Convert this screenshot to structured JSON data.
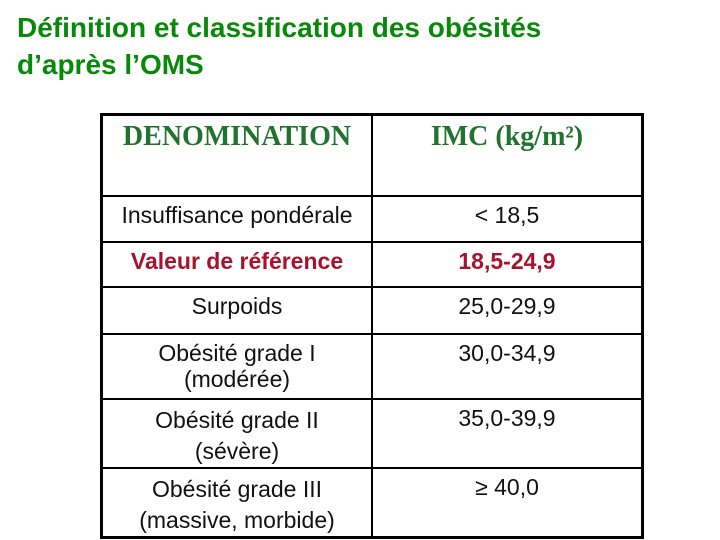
{
  "slide": {
    "title_line1": "Définition et classification des obésités",
    "title_line2": "d’après l’OMS",
    "title_color": "#098909"
  },
  "table": {
    "header_color": "#21722F",
    "emphasis_color": "#A8122A",
    "border_color": "#000000",
    "headers": [
      {
        "label": "DENOMINATION"
      },
      {
        "label": "IMC (kg/m²)"
      }
    ],
    "rows": [
      {
        "denomination_line1": "Insuffisance pondérale",
        "denomination_line2": "",
        "imc": "< 18,5",
        "emphasis": false
      },
      {
        "denomination_line1": "Valeur de référence",
        "denomination_line2": "",
        "imc": "18,5-24,9",
        "emphasis": true
      },
      {
        "denomination_line1": "Surpoids",
        "denomination_line2": "",
        "imc": "25,0-29,9",
        "emphasis": false
      },
      {
        "denomination_line1": "Obésité grade I",
        "denomination_line2": "(modérée)",
        "imc": "30,0-34,9",
        "emphasis": false
      },
      {
        "denomination_line1": "Obésité grade II",
        "denomination_line2": "(sévère)",
        "imc": "35,0-39,9",
        "emphasis": false
      },
      {
        "denomination_line1": "Obésité grade III",
        "denomination_line2": "(massive, morbide)",
        "imc": "≥ 40,0",
        "emphasis": false
      }
    ]
  }
}
